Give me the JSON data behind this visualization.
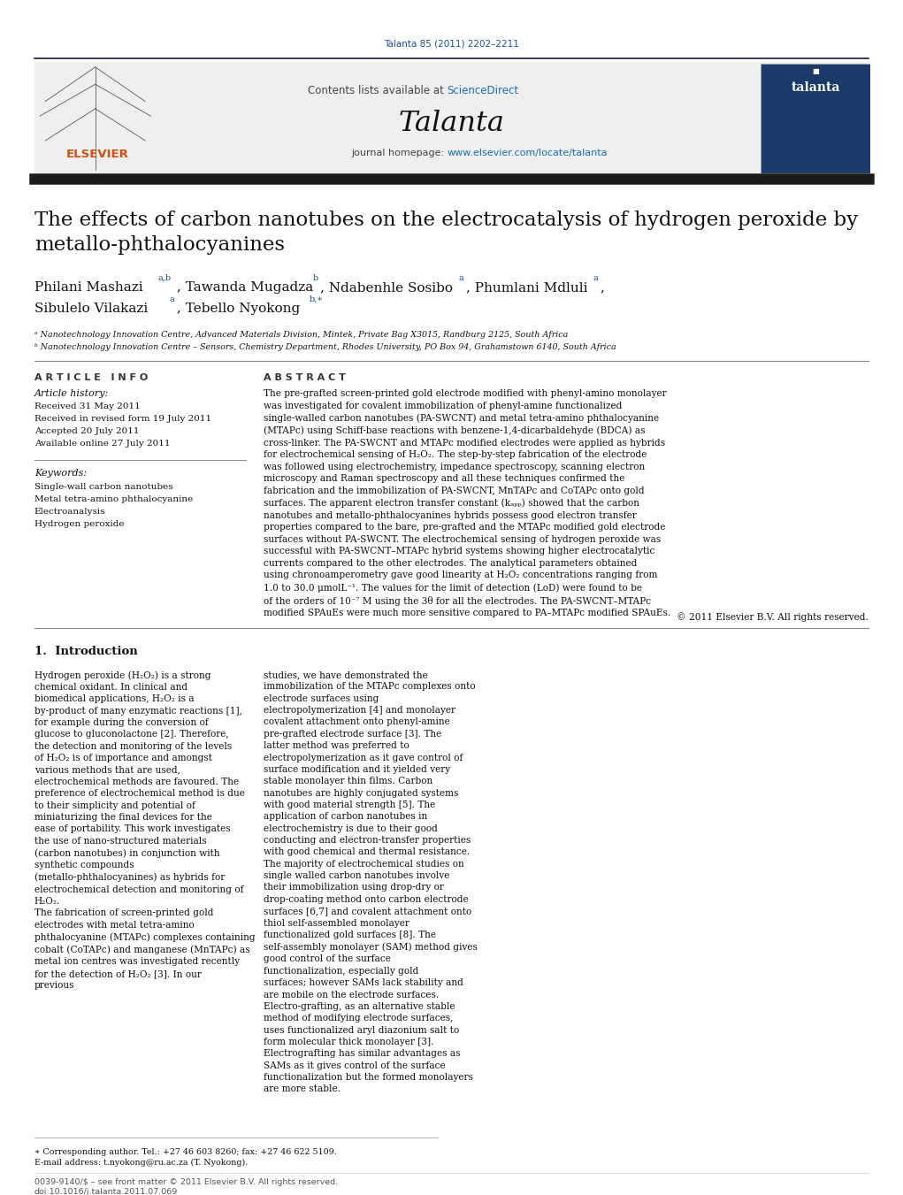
{
  "page_width": 10.21,
  "page_height": 13.51,
  "bg_color": "#ffffff",
  "journal_ref": "Talanta 85 (2011) 2202–2211",
  "journal_ref_color": "#1a4d8f",
  "header_bg": "#f0f0f0",
  "header_text": "Contents lists available at ",
  "sciencedirect_text": "ScienceDirect",
  "sciencedirect_color": "#1a6faa",
  "journal_name": "Talanta",
  "journal_homepage_prefix": "journal homepage: ",
  "journal_url": "www.elsevier.com/locate/talanta",
  "journal_url_color": "#1a6faa",
  "title": "The effects of carbon nanotubes on the electrocatalysis of hydrogen peroxide by\nmetallo-phthalocyanines",
  "affil_a": "ᵃ Nanotechnology Innovation Centre, Advanced Materials Division, Mintek, Private Bag X3015, Randburg 2125, South Africa",
  "affil_b": "ᵇ Nanotechnology Innovation Centre – Sensors, Chemistry Department, Rhodes University, PO Box 94, Grahamstown 6140, South Africa",
  "article_info_title": "A R T I C L E   I N F O",
  "abstract_title": "A B S T R A C T",
  "article_history_title": "Article history:",
  "received": "Received 31 May 2011",
  "received_revised": "Received in revised form 19 July 2011",
  "accepted": "Accepted 20 July 2011",
  "available": "Available online 27 July 2011",
  "keywords_title": "Keywords:",
  "keyword1": "Single-wall carbon nanotubes",
  "keyword2": "Metal tetra-amino phthalocyanine",
  "keyword3": "Electroanalysis",
  "keyword4": "Hydrogen peroxide",
  "abstract_text": "The pre-grafted screen-printed gold electrode modified with phenyl-amino monolayer was investigated for covalent immobilization of phenyl-amine functionalized single-walled carbon nanotubes (PA-SWCNT) and metal tetra-amino phthalocyanine (MTAPc) using Schiff-base reactions with benzene-1,4-dicarbaldehyde (BDCA) as cross-linker. The PA-SWCNT and MTAPc modified electrodes were applied as hybrids for electrochemical sensing of H₂O₂. The step-by-step fabrication of the electrode was followed using electrochemistry, impedance spectroscopy, scanning electron microscopy and Raman spectroscopy and all these techniques confirmed the fabrication and the immobilization of PA-SWCNT, MnTAPc and CoTAPc onto gold surfaces. The apparent electron transfer constant (kₐₚₚ) showed that the carbon nanotubes and metallo-phthalocyanines hybrids possess good electron transfer properties compared to the bare, pre-grafted and the MTAPc modified gold electrode surfaces without PA-SWCNT. The electrochemical sensing of hydrogen peroxide was successful with PA-SWCNT–MTAPc hybrid systems showing higher electrocatalytic currents compared to the other electrodes. The analytical parameters obtained using chronoamperometry gave good linearity at H₂O₂ concentrations ranging from 1.0 to 30.0 μmolL⁻¹. The values for the limit of detection (LoD) were found to be of the orders of 10⁻⁷ M using the 3θ for all the electrodes. The PA-SWCNT–MTAPc modified SPAuEs were much more sensitive compared to PA–MTAPc modified SPAuEs.",
  "copyright": "© 2011 Elsevier B.V. All rights reserved.",
  "intro_heading": "1.  Introduction",
  "intro_col1": "Hydrogen peroxide (H₂O₂) is a strong chemical oxidant. In clinical and biomedical applications, H₂O₂ is a by-product of many enzymatic reactions [1], for example during the conversion of glucose to gluconolactone [2]. Therefore, the detection and monitoring of the levels of H₂O₂ is of importance and amongst various methods that are used, electrochemical methods are favoured. The preference of electrochemical method is due to their simplicity and potential of miniaturizing the final devices for the ease of portability. This work investigates the use of nano-structured materials (carbon nanotubes) in conjunction with synthetic compounds (metallo-phthalocyanines) as hybrids for electrochemical detection and monitoring of H₂O₂.\n    The fabrication of screen-printed gold electrodes with metal tetra-amino phthalocyanine (MTAPc) complexes containing cobalt (CoTAPc) and manganese (MnTAPc) as metal ion centres was investigated recently for the detection of H₂O₂ [3]. In our previous",
  "intro_col2": "studies, we have demonstrated the immobilization of the MTAPc complexes onto electrode surfaces using electropolymerization [4] and monolayer covalent attachment onto phenyl-amine pre-grafted electrode surface [3]. The latter method was preferred to electropolymerization as it gave control of surface modification and it yielded very stable monolayer thin films. Carbon nanotubes are highly conjugated systems with good material strength [5]. The application of carbon nanotubes in electrochemistry is due to their good conducting and electron-transfer properties with good chemical and thermal resistance. The majority of electrochemical studies on single walled carbon nanotubes involve their immobilization using drop-dry or drop-coating method onto carbon electrode surfaces [6,7] and covalent attachment onto thiol self-assembled monolayer functionalized gold surfaces [8]. The self-assembly monolayer (SAM) method gives good control of the surface functionalization, especially gold surfaces; however SAMs lack stability and are mobile on the electrode surfaces. Electro-grafting, as an alternative stable method of modifying electrode surfaces, uses functionalized aryl diazonium salt to form molecular thick monolayer [3]. Electrografting has similar advantages as SAMs as it gives control of the surface functionalization but the formed monolayers are more stable.",
  "footer_text1": "0039-9140/$ – see front matter © 2011 Elsevier B.V. All rights reserved.",
  "footer_text2": "doi:10.1016/j.talanta.2011.07.069",
  "footnote_star": "∗ Corresponding author. Tel.: +27 46 603 8260; fax: +27 46 622 5109.",
  "footnote_email": "E-mail address: t.nyokong@ru.ac.za (T. Nyokong)."
}
